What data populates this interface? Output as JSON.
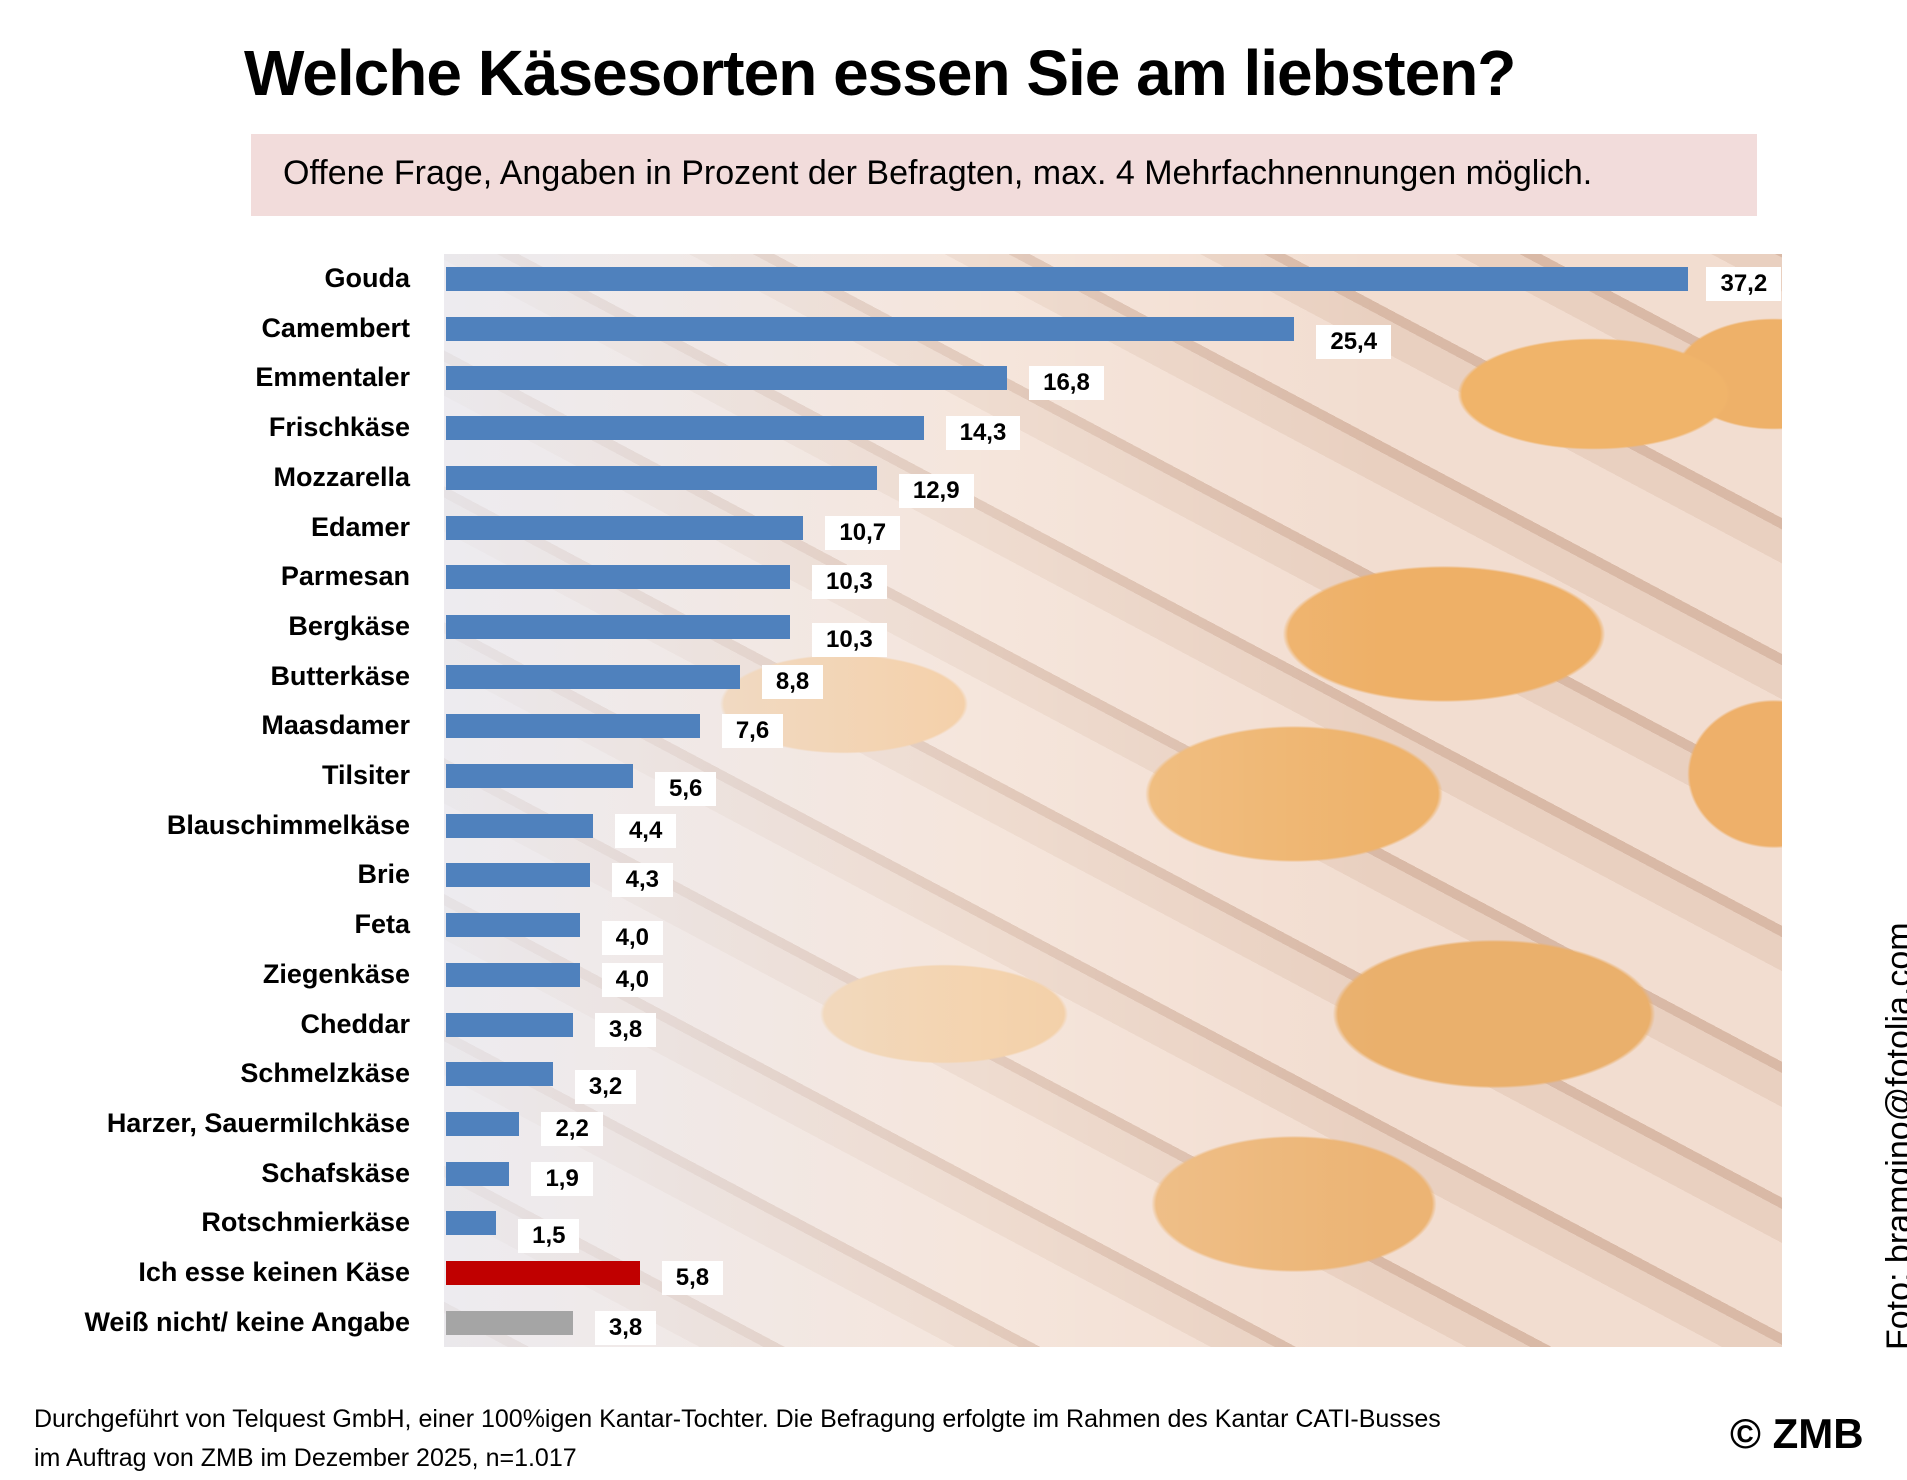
{
  "chart_data": {
    "type": "bar",
    "orientation": "horizontal",
    "title": "Welche Käsesorten essen Sie am liebsten?",
    "subtitle": "Offene Frage, Angaben in Prozent der Befragten, max. 4 Mehrfachnennungen möglich.",
    "categories": [
      "Gouda",
      "Camembert",
      "Emmentaler",
      "Frischkäse",
      "Mozzarella",
      "Edamer",
      "Parmesan",
      "Bergkäse",
      "Butterkäse",
      "Maasdamer",
      "Tilsiter",
      "Blauschimmelkäse",
      "Brie",
      "Feta",
      "Ziegenkäse",
      "Cheddar",
      "Schmelzkäse",
      "Harzer, Sauermilchkäse",
      "Schafskäse",
      "Rotschmierkäse",
      "Ich esse keinen Käse",
      "Weiß nicht/ keine Angabe"
    ],
    "values": [
      37.2,
      25.4,
      16.8,
      14.3,
      12.9,
      10.7,
      10.3,
      10.3,
      8.8,
      7.6,
      5.6,
      4.4,
      4.3,
      4.0,
      4.0,
      3.8,
      3.2,
      2.2,
      1.9,
      1.5,
      5.8,
      3.8
    ],
    "value_labels": [
      "37,2",
      "25,4",
      "16,8",
      "14,3",
      "12,9",
      "10,7",
      "10,3",
      "10,3",
      "8,8",
      "7,6",
      "5,6",
      "4,4",
      "4,3",
      "4,0",
      "4,0",
      "3,8",
      "3,2",
      "2,2",
      "1,9",
      "1,5",
      "5,8",
      "3,8"
    ],
    "colors": [
      "#4f81bd",
      "#4f81bd",
      "#4f81bd",
      "#4f81bd",
      "#4f81bd",
      "#4f81bd",
      "#4f81bd",
      "#4f81bd",
      "#4f81bd",
      "#4f81bd",
      "#4f81bd",
      "#4f81bd",
      "#4f81bd",
      "#4f81bd",
      "#4f81bd",
      "#4f81bd",
      "#4f81bd",
      "#4f81bd",
      "#4f81bd",
      "#4f81bd",
      "#c00000",
      "#a5a5a5"
    ],
    "xlim": [
      0,
      40
    ],
    "grid": false,
    "background": "photo of cheese wheels on wooden shelves"
  },
  "credit": "Foto: bramgino@fotolia.com",
  "footer": {
    "line1": "Durchgeführt von Telquest GmbH, einer 100%igen Kantar-Tochter. Die Befragung erfolgte im Rahmen des Kantar CATI-Busses",
    "line2": "im Auftrag von ZMB im Dezember 2025, n=1.017",
    "copyright": "© ZMB"
  }
}
